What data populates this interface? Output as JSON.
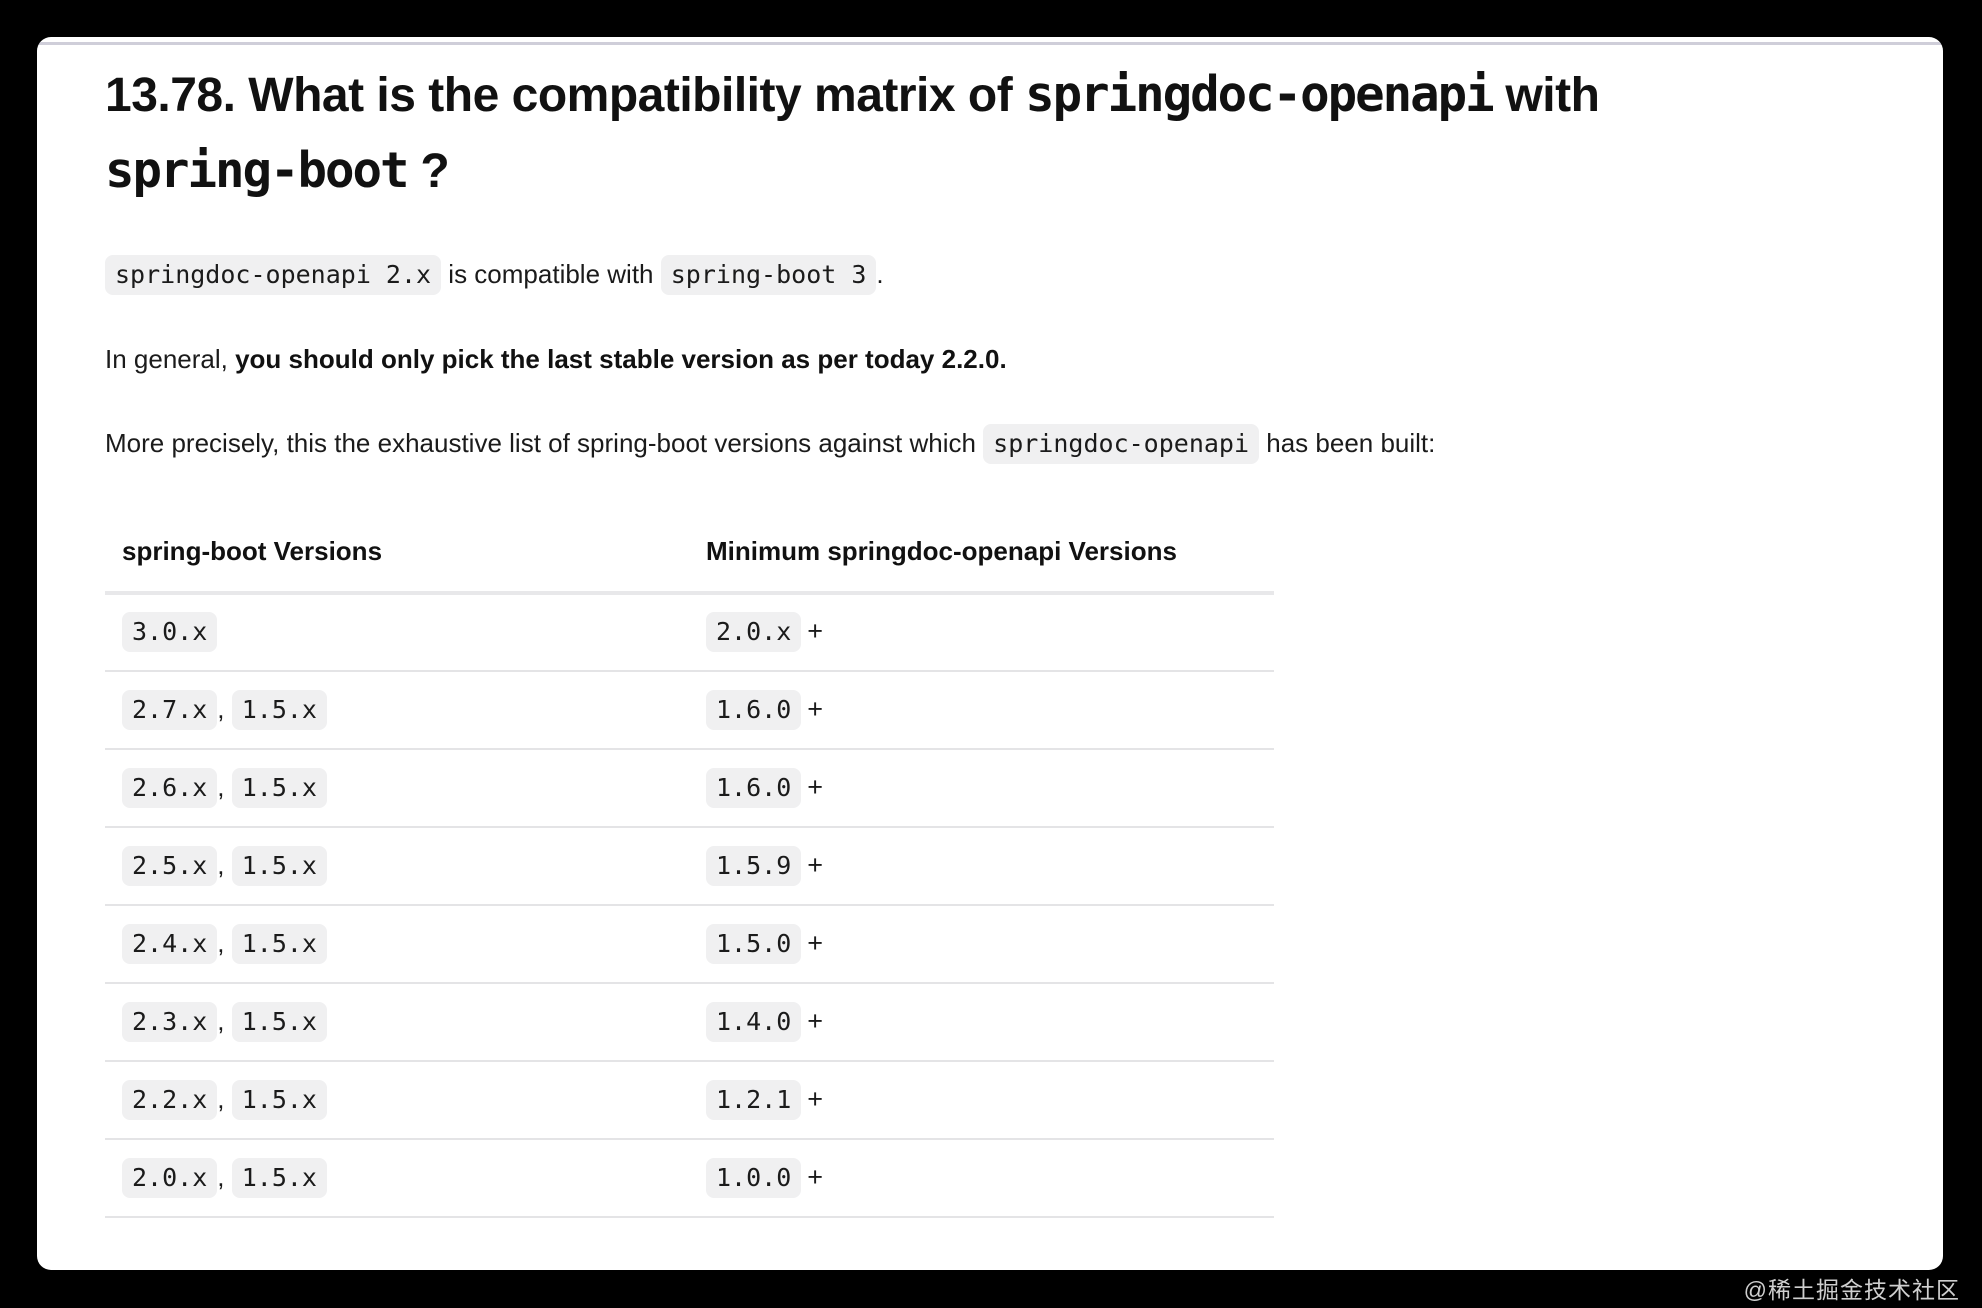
{
  "article": {
    "heading": {
      "line1_prefix": "13.78. What is the compatibility matrix of ",
      "line1_code": "springdoc-openapi",
      "line1_suffix": " with",
      "line2_code": "spring-boot",
      "line2_suffix": " ?"
    },
    "paragraphs": {
      "compat": {
        "code1": "springdoc-openapi 2.x",
        "text1": " is compatible with ",
        "code2": "spring-boot 3",
        "suffix": "."
      },
      "general": {
        "prefix": "In general, ",
        "bold": "you should only pick the last stable version as per today 2.2.0."
      },
      "precise": {
        "prefix": "More precisely, this the exhaustive list of spring-boot versions against which ",
        "code": "springdoc-openapi",
        "suffix": " has been built:"
      }
    },
    "table": {
      "headers": [
        "spring-boot Versions",
        "Minimum springdoc-openapi Versions"
      ],
      "rows": [
        {
          "spring_boot": [
            "3.0.x"
          ],
          "min_springdoc": "2.0.x",
          "suffix": "+"
        },
        {
          "spring_boot": [
            "2.7.x",
            "1.5.x"
          ],
          "min_springdoc": "1.6.0",
          "suffix": "+"
        },
        {
          "spring_boot": [
            "2.6.x",
            "1.5.x"
          ],
          "min_springdoc": "1.6.0",
          "suffix": "+"
        },
        {
          "spring_boot": [
            "2.5.x",
            "1.5.x"
          ],
          "min_springdoc": "1.5.9",
          "suffix": "+"
        },
        {
          "spring_boot": [
            "2.4.x",
            "1.5.x"
          ],
          "min_springdoc": "1.5.0",
          "suffix": "+"
        },
        {
          "spring_boot": [
            "2.3.x",
            "1.5.x"
          ],
          "min_springdoc": "1.4.0",
          "suffix": "+"
        },
        {
          "spring_boot": [
            "2.2.x",
            "1.5.x"
          ],
          "min_springdoc": "1.2.1",
          "suffix": "+"
        },
        {
          "spring_boot": [
            "2.0.x",
            "1.5.x"
          ],
          "min_springdoc": "1.0.0",
          "suffix": "+"
        }
      ],
      "cell_separator": ", "
    },
    "watermark": "@稀土掘金技术社区"
  },
  "colors": {
    "page_bg": "#000000",
    "card_bg": "#ffffff",
    "text": "#161616",
    "code_chip_bg": "#f0f0f1",
    "row_divider": "#e4e4e6",
    "header_divider": "#e8e8ea",
    "top_accent_line": "#cfced9",
    "watermark_text": "#cfcfcf"
  }
}
